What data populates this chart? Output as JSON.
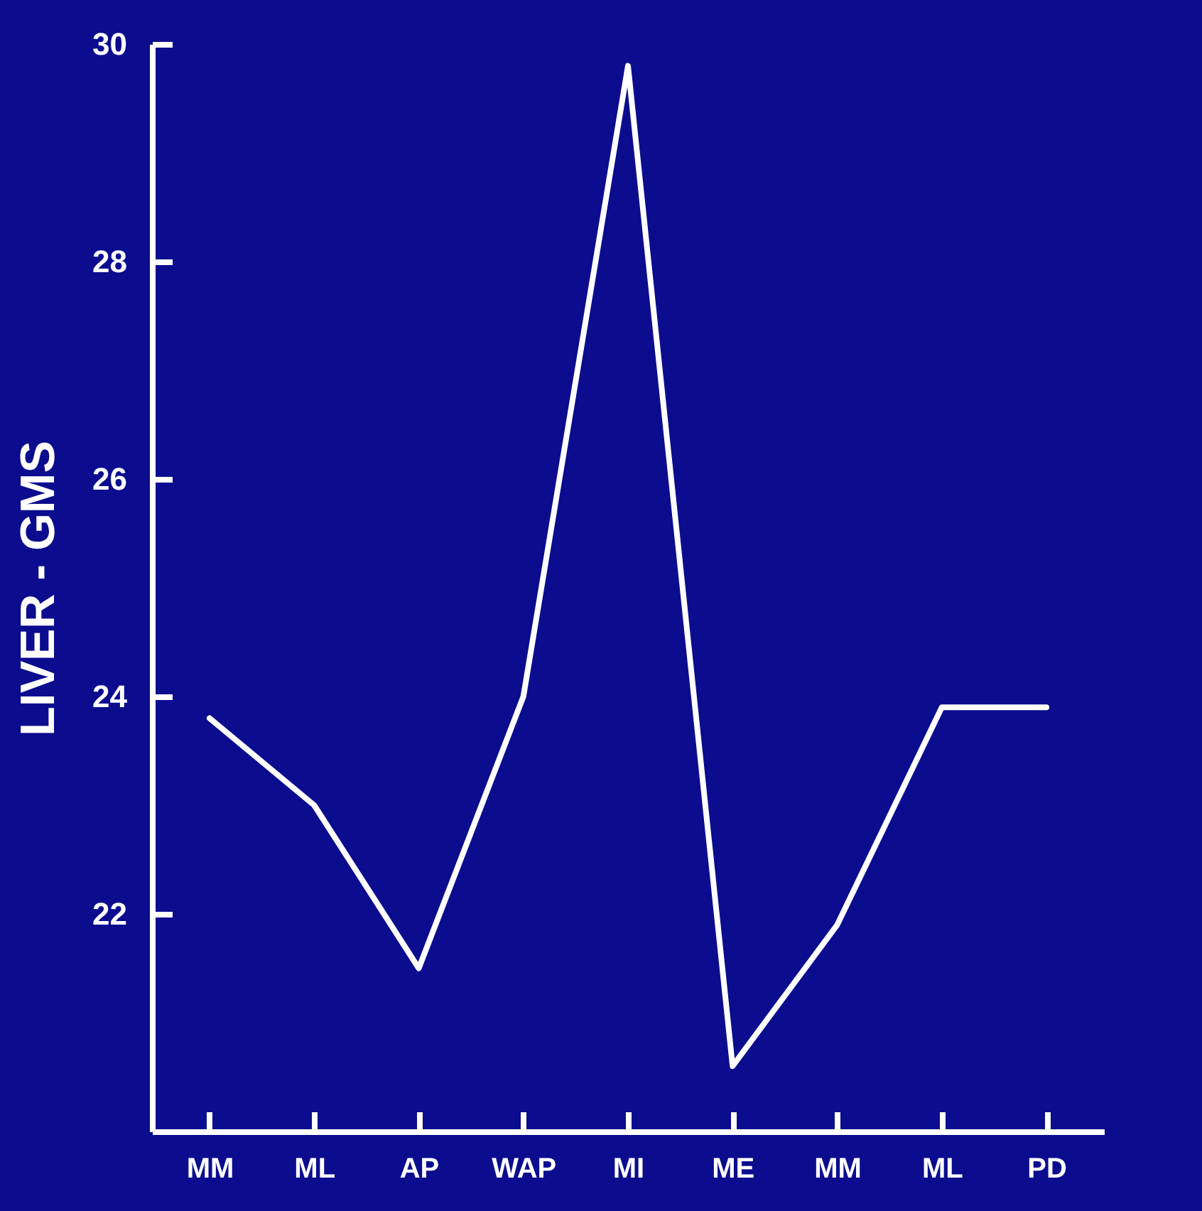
{
  "chart_data": {
    "type": "line",
    "ylabel": "LIVER - GMS",
    "categories": [
      "MM",
      "ML",
      "AP",
      "WAP",
      "MI",
      "ME",
      "MM",
      "ML",
      "PD"
    ],
    "series": [
      {
        "color": "#ffffff",
        "values": [
          23.8,
          23.0,
          21.5,
          24.0,
          29.8,
          20.6,
          21.9,
          23.9,
          23.9
        ]
      }
    ],
    "ylim": [
      20,
      30
    ],
    "yticks": [
      22,
      24,
      26,
      28,
      30
    ],
    "grid": false,
    "marker": "none",
    "line_style": "solid"
  }
}
